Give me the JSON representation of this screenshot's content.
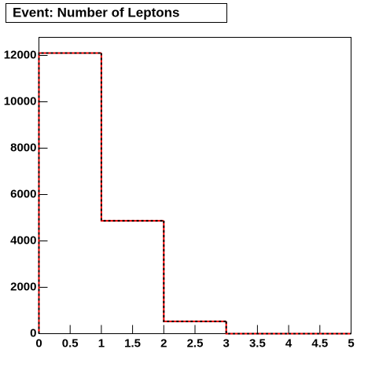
{
  "chart_data": {
    "type": "histogram",
    "title": "Event: Number of Leptons",
    "bins": [
      0,
      1,
      2,
      3,
      4,
      5
    ],
    "series": [
      {
        "color": "#ff0000",
        "line_style": "solid",
        "values": [
          12100,
          4870,
          530,
          0,
          0
        ]
      },
      {
        "color": "#000000",
        "line_style": "dashed",
        "values": [
          12100,
          4870,
          530,
          0,
          0
        ]
      }
    ],
    "xlim": [
      0,
      5
    ],
    "xticks": [
      0,
      0.5,
      1,
      1.5,
      2,
      2.5,
      3,
      3.5,
      4,
      4.5,
      5
    ],
    "ylim": [
      0,
      12780
    ],
    "yticks": [
      0,
      2000,
      4000,
      6000,
      8000,
      10000,
      12000
    ],
    "grid": false
  }
}
